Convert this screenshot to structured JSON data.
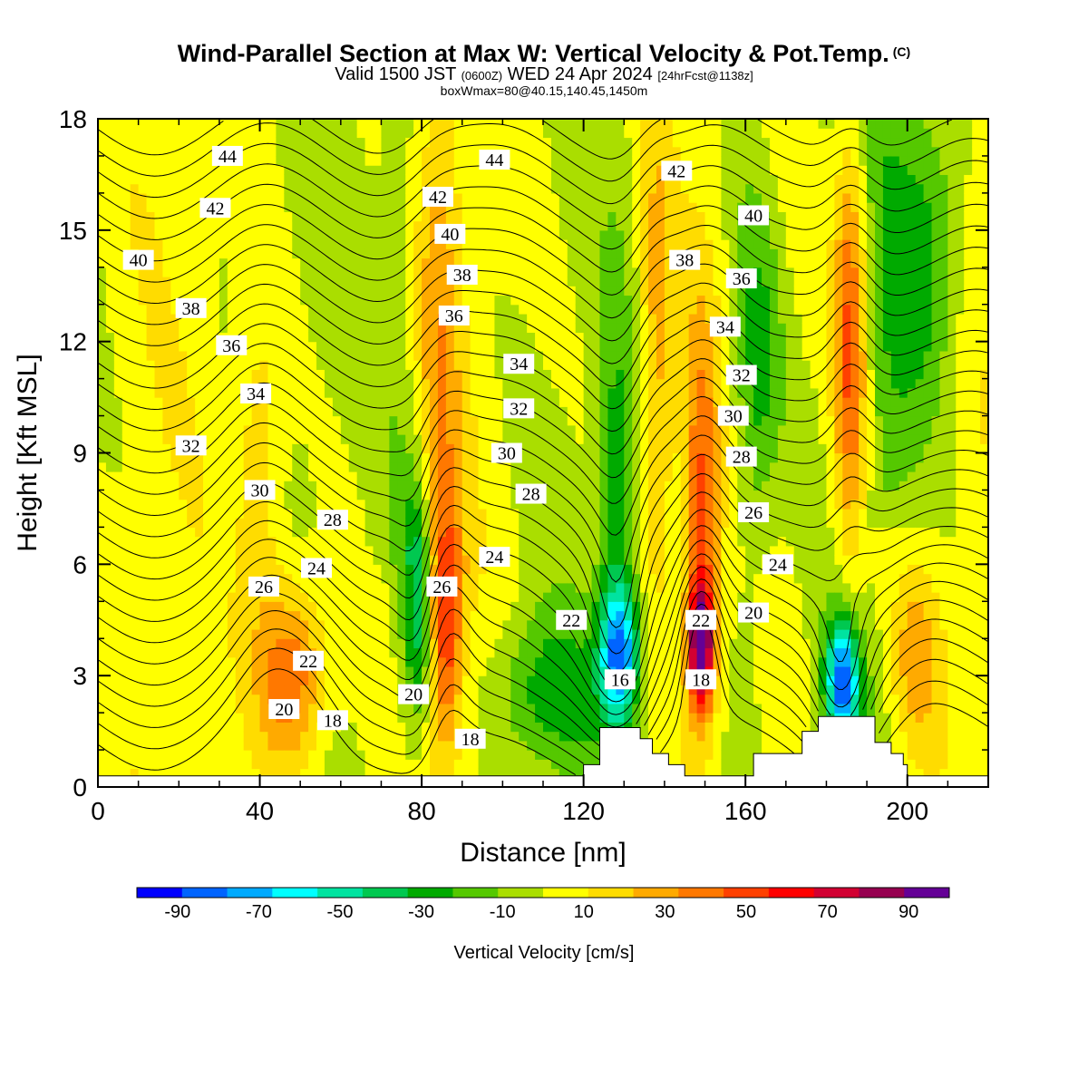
{
  "chart_data": {
    "type": "heatmap",
    "title": "Wind-Parallel Section at Max W: Vertical Velocity & Pot.Temp.",
    "title_mark": "(C)",
    "subtitle_parts": [
      "Valid 1500 JST",
      "(0600Z)",
      "WED 24 Apr 2024",
      "[24hrFcst@1138z]"
    ],
    "subtitle2": "boxWmax=80@40.15,140.45,1450m",
    "xlabel": "Distance [nm]",
    "ylabel": "Height [Kft MSL]",
    "xlim": [
      0,
      220
    ],
    "ylim": [
      0,
      18
    ],
    "xticks": [
      0,
      40,
      80,
      120,
      160,
      200
    ],
    "yticks": [
      0,
      3,
      6,
      9,
      12,
      15,
      18
    ],
    "colorbar": {
      "label": "Vertical Velocity [cm/s]",
      "tick_labels": [
        "-90",
        "-70",
        "-50",
        "-30",
        "-10",
        "10",
        "30",
        "50",
        "70",
        "90"
      ],
      "tick_values": [
        -90,
        -70,
        -50,
        -30,
        -10,
        10,
        30,
        50,
        70,
        90
      ],
      "bounds": [
        -100,
        100
      ],
      "colors": [
        "#0000ff",
        "#0064ff",
        "#00aaff",
        "#00ffff",
        "#00e3a0",
        "#00c850",
        "#00aa00",
        "#55c800",
        "#aade00",
        "#ffff00",
        "#ffdc00",
        "#ffaa00",
        "#ff7800",
        "#ff4000",
        "#ff0000",
        "#d20032",
        "#960050",
        "#640096"
      ]
    },
    "theta_contours": {
      "levels": [
        16,
        17,
        18,
        19,
        20,
        21,
        22,
        23,
        24,
        25,
        26,
        27,
        28,
        29,
        30,
        31,
        32,
        33,
        34,
        35,
        36,
        37,
        38,
        39,
        40,
        41,
        42,
        43,
        44,
        45
      ],
      "labels": [
        {
          "text": "44",
          "x": 32,
          "y": 17.0
        },
        {
          "text": "42",
          "x": 29,
          "y": 15.6
        },
        {
          "text": "40",
          "x": 10,
          "y": 14.2
        },
        {
          "text": "38",
          "x": 23,
          "y": 12.9
        },
        {
          "text": "36",
          "x": 33,
          "y": 11.9
        },
        {
          "text": "34",
          "x": 39,
          "y": 10.6
        },
        {
          "text": "32",
          "x": 23,
          "y": 9.2
        },
        {
          "text": "30",
          "x": 40,
          "y": 8.0
        },
        {
          "text": "28",
          "x": 58,
          "y": 7.2
        },
        {
          "text": "26",
          "x": 41,
          "y": 5.4
        },
        {
          "text": "24",
          "x": 54,
          "y": 5.9
        },
        {
          "text": "22",
          "x": 52,
          "y": 3.4
        },
        {
          "text": "20",
          "x": 46,
          "y": 2.1
        },
        {
          "text": "18",
          "x": 58,
          "y": 1.8
        },
        {
          "text": "44",
          "x": 98,
          "y": 16.9
        },
        {
          "text": "42",
          "x": 84,
          "y": 15.9
        },
        {
          "text": "40",
          "x": 87,
          "y": 14.9
        },
        {
          "text": "38",
          "x": 90,
          "y": 13.8
        },
        {
          "text": "36",
          "x": 88,
          "y": 12.7
        },
        {
          "text": "34",
          "x": 104,
          "y": 11.4
        },
        {
          "text": "32",
          "x": 104,
          "y": 10.2
        },
        {
          "text": "30",
          "x": 101,
          "y": 9.0
        },
        {
          "text": "28",
          "x": 107,
          "y": 7.9
        },
        {
          "text": "24",
          "x": 98,
          "y": 6.2
        },
        {
          "text": "26",
          "x": 85,
          "y": 5.4
        },
        {
          "text": "22",
          "x": 117,
          "y": 4.5
        },
        {
          "text": "20",
          "x": 78,
          "y": 2.5
        },
        {
          "text": "18",
          "x": 92,
          "y": 1.3
        },
        {
          "text": "16",
          "x": 129,
          "y": 2.9
        },
        {
          "text": "42",
          "x": 143,
          "y": 16.6
        },
        {
          "text": "40",
          "x": 162,
          "y": 15.4
        },
        {
          "text": "38",
          "x": 145,
          "y": 14.2
        },
        {
          "text": "36",
          "x": 159,
          "y": 13.7
        },
        {
          "text": "34",
          "x": 155,
          "y": 12.4
        },
        {
          "text": "32",
          "x": 159,
          "y": 11.1
        },
        {
          "text": "30",
          "x": 157,
          "y": 10.0
        },
        {
          "text": "28",
          "x": 159,
          "y": 8.9
        },
        {
          "text": "26",
          "x": 162,
          "y": 7.4
        },
        {
          "text": "24",
          "x": 168,
          "y": 6.0
        },
        {
          "text": "22",
          "x": 149,
          "y": 4.5
        },
        {
          "text": "20",
          "x": 162,
          "y": 4.7
        },
        {
          "text": "18",
          "x": 149,
          "y": 2.9
        }
      ]
    },
    "vertical_velocity_features": [
      {
        "kind": "up",
        "x": 48,
        "z": 3.0,
        "w": 48,
        "sx": 6,
        "sz": 1.8
      },
      {
        "kind": "up",
        "x": 40,
        "z": 8.5,
        "w": 22,
        "sx": 4,
        "sz": 3.2
      },
      {
        "kind": "up",
        "x": 86,
        "z": 4.5,
        "w": 48,
        "sx": 3,
        "sz": 2.5
      },
      {
        "kind": "up",
        "x": 84,
        "z": 12.5,
        "w": 24,
        "sx": 4,
        "sz": 4.5
      },
      {
        "kind": "down",
        "x": 79,
        "z": 5.0,
        "w": -45,
        "sx": 2.5,
        "sz": 2.2
      },
      {
        "kind": "down",
        "x": 129,
        "z": 3.6,
        "w": -75,
        "sx": 3.5,
        "sz": 1.4
      },
      {
        "kind": "down",
        "x": 128,
        "z": 8.5,
        "w": -25,
        "sx": 3,
        "sz": 3.5
      },
      {
        "kind": "up",
        "x": 149,
        "z": 3.8,
        "w": 88,
        "sx": 2.2,
        "sz": 1.2
      },
      {
        "kind": "up",
        "x": 149,
        "z": 7.5,
        "w": 40,
        "sx": 3,
        "sz": 3.5
      },
      {
        "kind": "up",
        "x": 138,
        "z": 12.0,
        "w": 25,
        "sx": 3,
        "sz": 5
      },
      {
        "kind": "down",
        "x": 184,
        "z": 2.8,
        "w": -85,
        "sx": 3,
        "sz": 1.2
      },
      {
        "kind": "down",
        "x": 164,
        "z": 11.5,
        "w": -25,
        "sx": 4,
        "sz": 3
      },
      {
        "kind": "up",
        "x": 186,
        "z": 12.0,
        "w": 50,
        "sx": 3,
        "sz": 4
      },
      {
        "kind": "up",
        "x": 202,
        "z": 3.5,
        "w": 28,
        "sx": 5,
        "sz": 2
      },
      {
        "kind": "down",
        "x": 205,
        "z": 14.5,
        "w": -28,
        "sx": 6,
        "sz": 3
      },
      {
        "kind": "down",
        "x": 110,
        "z": 2.5,
        "w": -28,
        "sx": 10,
        "sz": 1.5
      }
    ],
    "terrain": {
      "segments": [
        [
          120,
          0.6
        ],
        [
          123,
          0.6
        ],
        [
          124,
          1.6
        ],
        [
          132,
          1.6
        ],
        [
          134,
          1.3
        ],
        [
          137,
          0.9
        ],
        [
          141,
          0.6
        ],
        [
          145,
          0.3
        ],
        [
          160,
          0.3
        ],
        [
          162,
          0.9
        ],
        [
          172,
          0.9
        ],
        [
          174,
          1.5
        ],
        [
          178,
          1.9
        ],
        [
          190,
          1.9
        ],
        [
          192,
          1.2
        ],
        [
          196,
          0.9
        ],
        [
          199,
          0.6
        ],
        [
          200,
          0.3
        ],
        [
          220,
          0.3
        ]
      ]
    }
  }
}
